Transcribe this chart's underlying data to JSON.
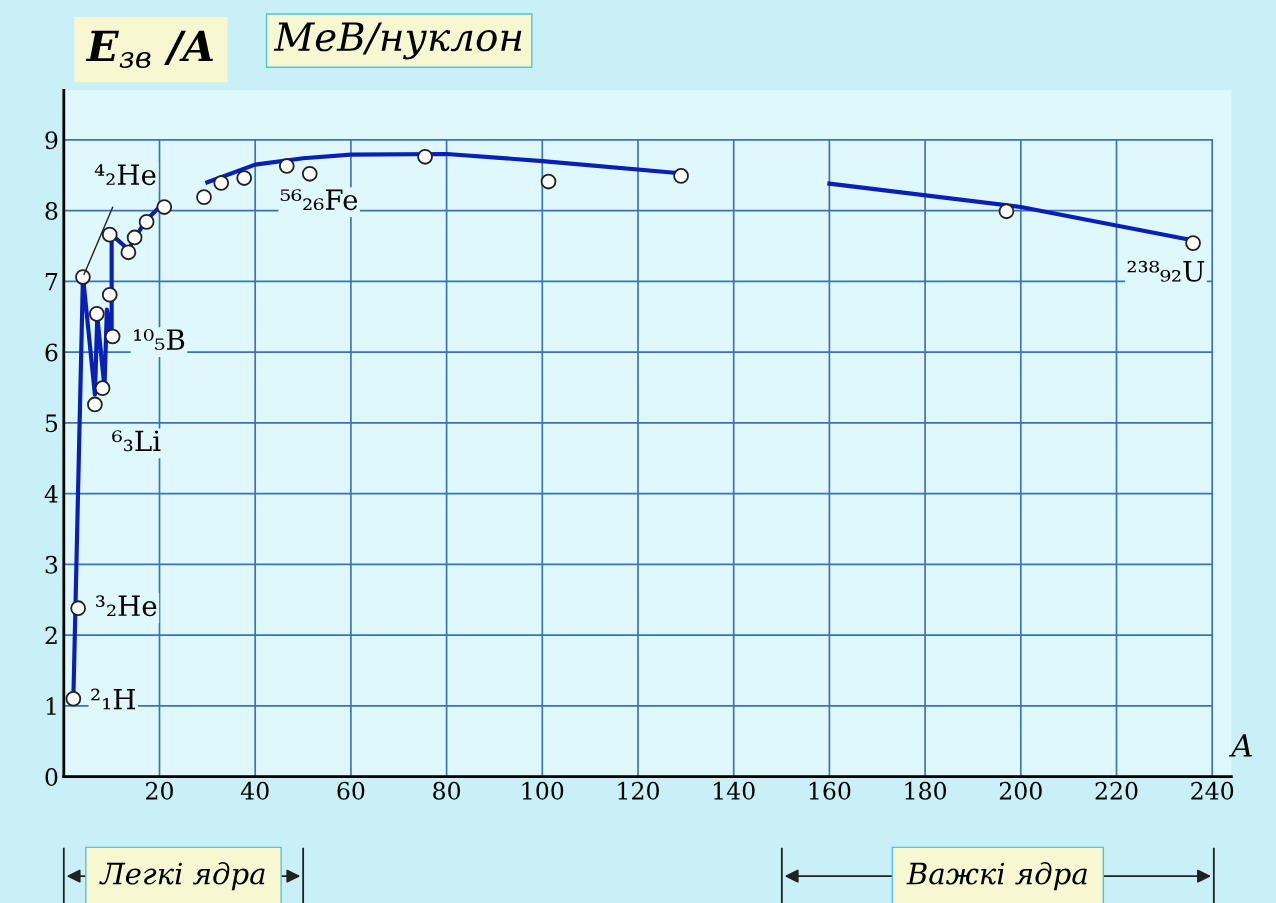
{
  "chart_data": {
    "type": "scatter",
    "ylabel": "E$_{зв}$ /A",
    "title": "МеВ/нуклон",
    "xlabel": "A",
    "series": [
      {
        "type": "line",
        "color": "#0a1fb5",
        "x": [
          2,
          4,
          6.5,
          7,
          8.5,
          9,
          10,
          10,
          13.5,
          17,
          20,
          22,
          30,
          40,
          50,
          60,
          80,
          100,
          130,
          133,
          160,
          200,
          236
        ],
        "values": [
          1.1,
          7.07,
          5.4,
          6.5,
          5.5,
          6.6,
          6.2,
          7.66,
          7.45,
          7.85,
          8.05,
          null,
          8.4,
          8.65,
          8.74,
          8.79,
          8.8,
          8.7,
          8.52,
          null,
          8.38,
          8.05,
          7.58
        ]
      },
      {
        "marker": "circle",
        "color": "#ffffff",
        "x": [
          2,
          3,
          4,
          6.5,
          6.9,
          8.1,
          9.6,
          10.2,
          9.6,
          13.5,
          14.8,
          17.3,
          21,
          29.3,
          32.9,
          37.7,
          46.6,
          51.4,
          75.5,
          101.3,
          129,
          197,
          236
        ],
        "values": [
          1.1,
          2.38,
          7.06,
          5.26,
          6.54,
          5.49,
          6.81,
          6.22,
          7.66,
          7.41,
          7.62,
          7.84,
          8.05,
          8.19,
          8.39,
          8.46,
          8.63,
          8.52,
          8.76,
          8.41,
          8.49,
          7.99,
          7.54
        ]
      }
    ],
    "line_style": "solid",
    "xlim": [
      0,
      244
    ],
    "ylim": [
      0,
      9.7
    ],
    "xticks": [
      20,
      40,
      60,
      80,
      100,
      120,
      140,
      160,
      180,
      200,
      220,
      240
    ],
    "yticks": [
      0,
      1,
      2,
      3,
      4,
      5,
      6,
      7,
      8,
      9
    ],
    "grid": true,
    "annotations": [
      {
        "text": "²₁H",
        "x": 2,
        "y": 1.1
      },
      {
        "text": "³₂He",
        "x": 3,
        "y": 2.38
      },
      {
        "text": "⁴₂He",
        "x": 4,
        "y": 7.06
      },
      {
        "text": "⁶₃Li",
        "x": 6.5,
        "y": 5.26
      },
      {
        "text": "¹⁰₅B",
        "x": 10.2,
        "y": 6.22
      },
      {
        "text": "⁵⁶₂₆Fe",
        "x": 46.6,
        "y": 8.63
      },
      {
        "text": "²³⁸₉₂U",
        "x": 236,
        "y": 7.54
      },
      "Легкі ядра",
      "Важкі ядра"
    ]
  }
}
